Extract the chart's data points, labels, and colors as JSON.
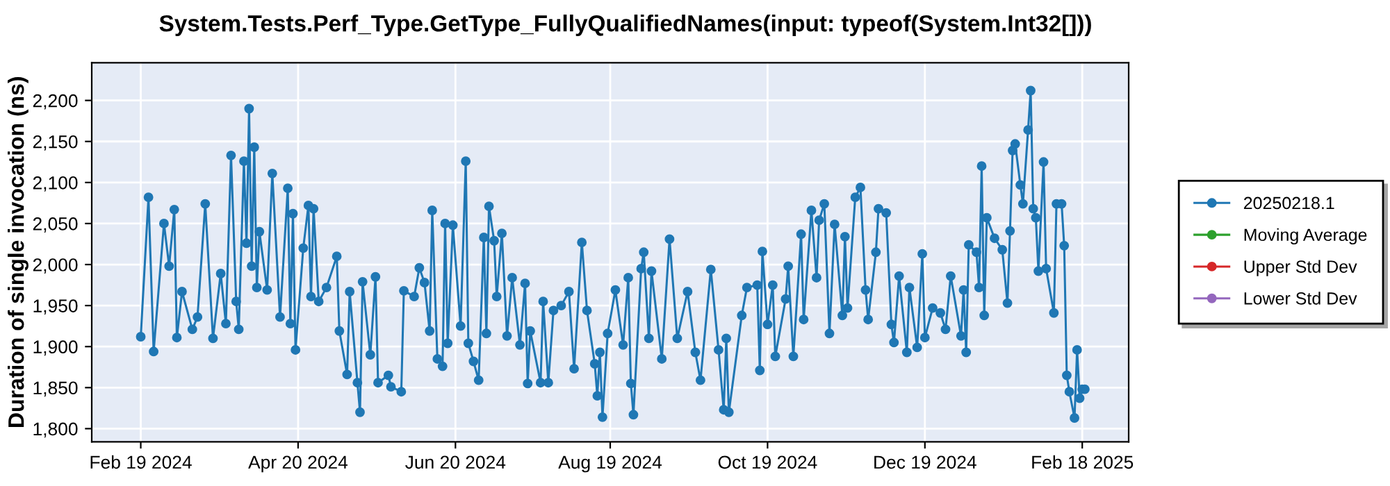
{
  "chart_data": {
    "type": "line",
    "title": "System.Tests.Perf_Type.GetType_FullyQualifiedNames(input: typeof(System.Int32[]))",
    "ylabel": "Duration of single invocation (ns)",
    "xlim": [
      "2024-01-31",
      "2025-03-08"
    ],
    "xticks": [
      {
        "value": "2024-02-19",
        "label": "Feb 19 2024"
      },
      {
        "value": "2024-04-20",
        "label": "Apr 20 2024"
      },
      {
        "value": "2024-06-20",
        "label": "Jun 20 2024"
      },
      {
        "value": "2024-08-19",
        "label": "Aug 19 2024"
      },
      {
        "value": "2024-10-19",
        "label": "Oct 19 2024"
      },
      {
        "value": "2024-12-19",
        "label": "Dec 19 2024"
      },
      {
        "value": "2025-02-18",
        "label": "Feb 18 2025"
      }
    ],
    "ylim": [
      1784,
      2246
    ],
    "yticks": [
      {
        "value": 1800,
        "label": "1,800"
      },
      {
        "value": 1850,
        "label": "1,850"
      },
      {
        "value": 1900,
        "label": "1,900"
      },
      {
        "value": 1950,
        "label": "1,950"
      },
      {
        "value": 2000,
        "label": "2,000"
      },
      {
        "value": 2050,
        "label": "2,050"
      },
      {
        "value": 2100,
        "label": "2,100"
      },
      {
        "value": 2150,
        "label": "2,150"
      },
      {
        "value": 2200,
        "label": "2,200"
      }
    ],
    "grid": true,
    "legend": "right",
    "marker": "circle",
    "line_style": "solid",
    "series": [
      {
        "name": "20250218.1",
        "color": "#1f77b4",
        "x": [
          "2024-02-19",
          "2024-02-22",
          "2024-02-24",
          "2024-02-28",
          "2024-03-01",
          "2024-03-03",
          "2024-03-04",
          "2024-03-06",
          "2024-03-10",
          "2024-03-12",
          "2024-03-15",
          "2024-03-18",
          "2024-03-21",
          "2024-03-23",
          "2024-03-25",
          "2024-03-27",
          "2024-03-28",
          "2024-03-30",
          "2024-03-31",
          "2024-04-01",
          "2024-04-02",
          "2024-04-03",
          "2024-04-04",
          "2024-04-05",
          "2024-04-08",
          "2024-04-10",
          "2024-04-13",
          "2024-04-16",
          "2024-04-17",
          "2024-04-18",
          "2024-04-19",
          "2024-04-22",
          "2024-04-24",
          "2024-04-25",
          "2024-04-26",
          "2024-04-28",
          "2024-05-01",
          "2024-05-05",
          "2024-05-06",
          "2024-05-09",
          "2024-05-10",
          "2024-05-13",
          "2024-05-14",
          "2024-05-15",
          "2024-05-18",
          "2024-05-20",
          "2024-05-21",
          "2024-05-25",
          "2024-05-26",
          "2024-05-30",
          "2024-05-31",
          "2024-06-04",
          "2024-06-06",
          "2024-06-08",
          "2024-06-10",
          "2024-06-11",
          "2024-06-13",
          "2024-06-15",
          "2024-06-16",
          "2024-06-17",
          "2024-06-19",
          "2024-06-22",
          "2024-06-24",
          "2024-06-25",
          "2024-06-27",
          "2024-06-29",
          "2024-07-01",
          "2024-07-02",
          "2024-07-03",
          "2024-07-05",
          "2024-07-06",
          "2024-07-08",
          "2024-07-10",
          "2024-07-12",
          "2024-07-15",
          "2024-07-17",
          "2024-07-18",
          "2024-07-19",
          "2024-07-23",
          "2024-07-24",
          "2024-07-26",
          "2024-07-28",
          "2024-07-31",
          "2024-08-03",
          "2024-08-05",
          "2024-08-08",
          "2024-08-10",
          "2024-08-13",
          "2024-08-14",
          "2024-08-15",
          "2024-08-16",
          "2024-08-18",
          "2024-08-21",
          "2024-08-24",
          "2024-08-26",
          "2024-08-27",
          "2024-08-28",
          "2024-08-31",
          "2024-09-01",
          "2024-09-03",
          "2024-09-04",
          "2024-09-08",
          "2024-09-11",
          "2024-09-14",
          "2024-09-18",
          "2024-09-21",
          "2024-09-23",
          "2024-09-27",
          "2024-09-30",
          "2024-10-02",
          "2024-10-03",
          "2024-10-04",
          "2024-10-09",
          "2024-10-11",
          "2024-10-15",
          "2024-10-16",
          "2024-10-17",
          "2024-10-19",
          "2024-10-21",
          "2024-10-22",
          "2024-10-26",
          "2024-10-27",
          "2024-10-29",
          "2024-11-01",
          "2024-11-02",
          "2024-11-05",
          "2024-11-07",
          "2024-11-08",
          "2024-11-10",
          "2024-11-12",
          "2024-11-14",
          "2024-11-17",
          "2024-11-18",
          "2024-11-19",
          "2024-11-22",
          "2024-11-24",
          "2024-11-26",
          "2024-11-27",
          "2024-11-30",
          "2024-12-01",
          "2024-12-04",
          "2024-12-06",
          "2024-12-07",
          "2024-12-09",
          "2024-12-12",
          "2024-12-13",
          "2024-12-16",
          "2024-12-18",
          "2024-12-19",
          "2024-12-22",
          "2024-12-25",
          "2024-12-27",
          "2024-12-29",
          "2025-01-02",
          "2025-01-03",
          "2025-01-04",
          "2025-01-05",
          "2025-01-08",
          "2025-01-09",
          "2025-01-10",
          "2025-01-11",
          "2025-01-12",
          "2025-01-15",
          "2025-01-18",
          "2025-01-20",
          "2025-01-21",
          "2025-01-22",
          "2025-01-23",
          "2025-01-25",
          "2025-01-26",
          "2025-01-28",
          "2025-01-29",
          "2025-01-30",
          "2025-01-31",
          "2025-02-01",
          "2025-02-03",
          "2025-02-04",
          "2025-02-07",
          "2025-02-08",
          "2025-02-10",
          "2025-02-11",
          "2025-02-12",
          "2025-02-13",
          "2025-02-15",
          "2025-02-16",
          "2025-02-17",
          "2025-02-18",
          "2025-02-19"
        ],
        "values": [
          1912,
          2082,
          1894,
          2050,
          1998,
          2067,
          1911,
          1967,
          1921,
          1936,
          2074,
          1910,
          1989,
          1928,
          2133,
          1955,
          1921,
          2126,
          2026,
          2190,
          1998,
          2143,
          1972,
          2040,
          1969,
          2111,
          1936,
          2093,
          1928,
          2062,
          1896,
          2020,
          2072,
          1961,
          2068,
          1955,
          1972,
          2010,
          1919,
          1866,
          1967,
          1856,
          1820,
          1979,
          1890,
          1985,
          1856,
          1865,
          1851,
          1845,
          1968,
          1961,
          1996,
          1978,
          1919,
          2066,
          1885,
          1876,
          2050,
          1904,
          2048,
          1925,
          2126,
          1904,
          1882,
          1859,
          2033,
          1916,
          2071,
          2029,
          1961,
          2038,
          1913,
          1984,
          1902,
          1977,
          1855,
          1919,
          1856,
          1955,
          1856,
          1944,
          1950,
          1967,
          1873,
          2027,
          1944,
          1879,
          1840,
          1893,
          1814,
          1916,
          1969,
          1902,
          1984,
          1855,
          1817,
          1995,
          2015,
          1910,
          1992,
          1885,
          2031,
          1910,
          1967,
          1893,
          1859,
          1994,
          1896,
          1823,
          1910,
          1820,
          1938,
          1972,
          1975,
          1871,
          2016,
          1927,
          1975,
          1888,
          1958,
          1998,
          1888,
          2037,
          1933,
          2066,
          1984,
          2054,
          2074,
          1916,
          2049,
          1938,
          2034,
          1947,
          2082,
          2094,
          1969,
          1933,
          2015,
          2068,
          2063,
          1927,
          1905,
          1986,
          1893,
          1972,
          1899,
          2013,
          1911,
          1947,
          1941,
          1921,
          1986,
          1913,
          1969,
          1893,
          2024,
          2015,
          1972,
          2120,
          1938,
          2057,
          2032,
          2018,
          1953,
          2041,
          2139,
          2147,
          2097,
          2074,
          2164,
          2212,
          2068,
          2057,
          1992,
          2125,
          1995,
          1941,
          2074,
          2074,
          2023,
          1865,
          1845,
          1813,
          1896,
          1837,
          1848,
          1848
        ]
      },
      {
        "name": "Moving Average",
        "color": "#2ca02c"
      },
      {
        "name": "Upper Std Dev",
        "color": "#d62728"
      },
      {
        "name": "Lower Std Dev",
        "color": "#9467bd"
      }
    ]
  }
}
